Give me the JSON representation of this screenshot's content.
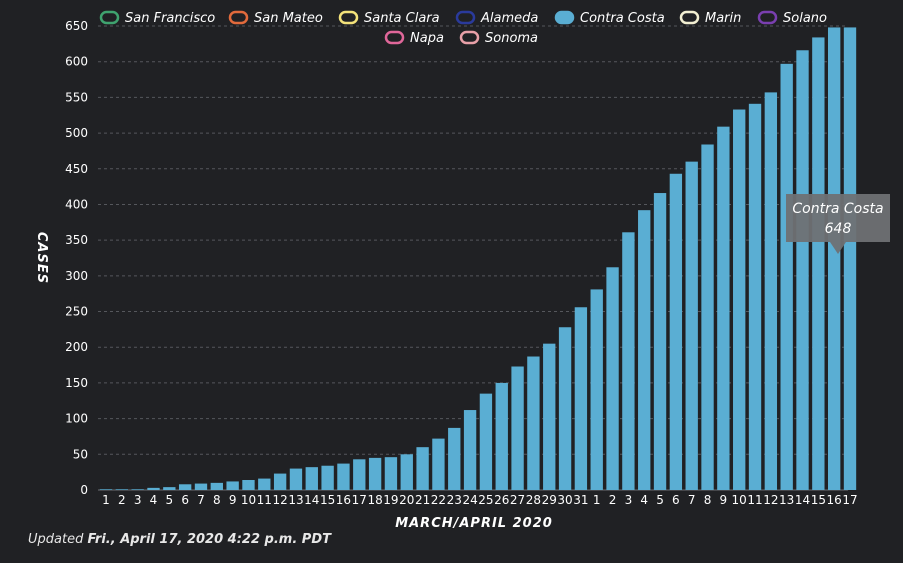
{
  "chart_data": {
    "type": "bar",
    "xlabel": "MARCH/APRIL 2020",
    "ylabel": "CASES",
    "ylim": [
      0,
      650
    ],
    "yticks": [
      0,
      50,
      100,
      150,
      200,
      250,
      300,
      350,
      400,
      450,
      500,
      550,
      600,
      650
    ],
    "grid": true,
    "legend_position": "top",
    "legend": [
      {
        "name": "San Francisco",
        "color": "#3fa36f"
      },
      {
        "name": "San Mateo",
        "color": "#e26a3c"
      },
      {
        "name": "Santa Clara",
        "color": "#f3e27a"
      },
      {
        "name": "Alameda",
        "color": "#2a3a9c"
      },
      {
        "name": "Contra Costa",
        "color": "#5aaed3",
        "active": true
      },
      {
        "name": "Marin",
        "color": "#f2efd2"
      },
      {
        "name": "Solano",
        "color": "#7a3fb0"
      },
      {
        "name": "Napa",
        "color": "#e0679a"
      },
      {
        "name": "Sonoma",
        "color": "#e8a0a8"
      }
    ],
    "categories": [
      "1",
      "2",
      "3",
      "4",
      "5",
      "6",
      "7",
      "8",
      "9",
      "10",
      "11",
      "12",
      "13",
      "14",
      "15",
      "16",
      "17",
      "18",
      "19",
      "20",
      "21",
      "22",
      "23",
      "24",
      "25",
      "26",
      "27",
      "28",
      "29",
      "30",
      "31",
      "1",
      "2",
      "3",
      "4",
      "5",
      "6",
      "7",
      "8",
      "9",
      "10",
      "11",
      "12",
      "13",
      "14",
      "15",
      "16",
      "17"
    ],
    "series": [
      {
        "name": "Contra Costa",
        "color": "#5aaed3",
        "values": [
          1,
          1,
          1,
          3,
          4,
          8,
          9,
          10,
          12,
          14,
          16,
          23,
          30,
          32,
          34,
          37,
          43,
          45,
          46,
          50,
          60,
          72,
          87,
          112,
          135,
          150,
          173,
          187,
          205,
          228,
          256,
          281,
          312,
          361,
          392,
          416,
          443,
          460,
          484,
          509,
          533,
          541,
          557,
          597,
          616,
          634,
          648,
          648
        ]
      }
    ],
    "tooltip": {
      "series": "Contra Costa",
      "value": "648"
    }
  },
  "footer": {
    "prefix": "Updated ",
    "timestamp": "Fri., April 17, 2020 4:22 p.m. PDT"
  }
}
